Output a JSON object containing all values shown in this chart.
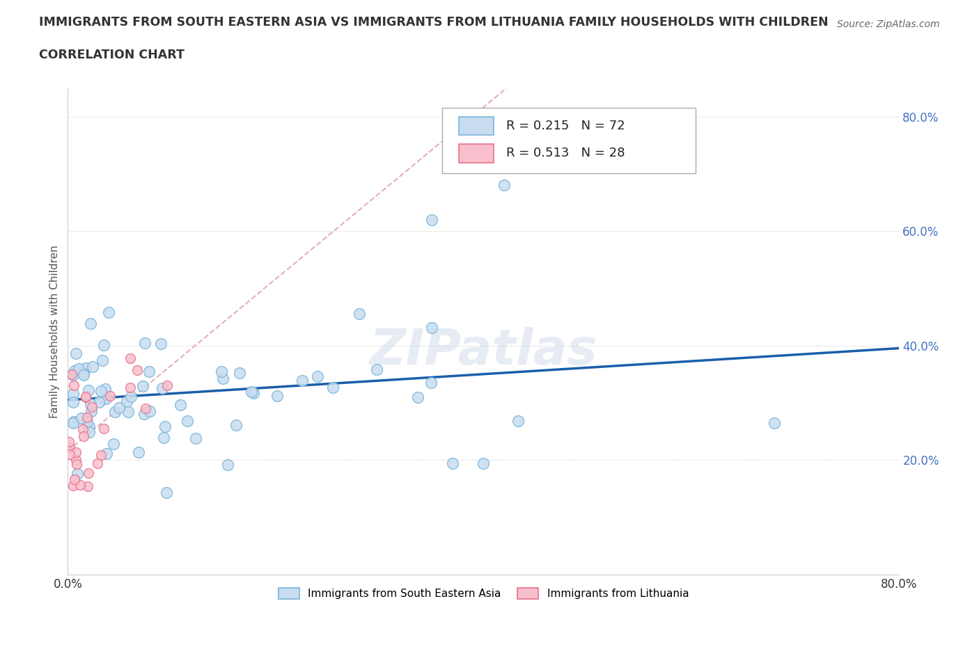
{
  "title": "IMMIGRANTS FROM SOUTH EASTERN ASIA VS IMMIGRANTS FROM LITHUANIA FAMILY HOUSEHOLDS WITH CHILDREN",
  "subtitle": "CORRELATION CHART",
  "source": "Source: ZipAtlas.com",
  "ylabel": "Family Households with Children",
  "xmin": 0.0,
  "xmax": 0.8,
  "ymin": 0.0,
  "ymax": 0.85,
  "R_blue": 0.215,
  "N_blue": 72,
  "R_pink": 0.513,
  "N_pink": 28,
  "blue_face_color": "#c8ddf0",
  "blue_edge_color": "#7ab4d8",
  "pink_face_color": "#f8c0cc",
  "pink_edge_color": "#e87090",
  "blue_line_color": "#1a5fa8",
  "pink_line_color": "#e0a0b0",
  "grid_color": "#cccccc",
  "right_tick_color": "#4472c4",
  "title_color": "#333333",
  "source_color": "#666666",
  "watermark_text": "ZIPatlas",
  "legend_label_blue": "Immigrants from South Eastern Asia",
  "legend_label_pink": "Immigrants from Lithuania"
}
